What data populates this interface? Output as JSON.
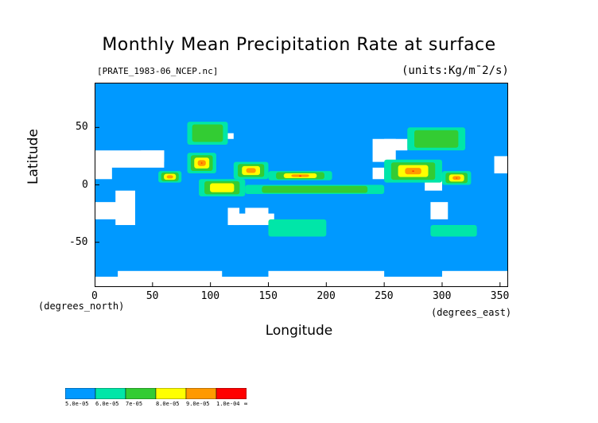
{
  "chart_data": {
    "type": "heatmap",
    "title": "Monthly Mean Precipitation Rate at surface",
    "source_file": "[PRATE_1983-06_NCEP.nc]",
    "units": "(units:Kg/m¯2/s)",
    "xlabel": "Longitude",
    "ylabel": "Latitude",
    "x_units_label": "(degrees_north)",
    "x_units_label_right": "(degrees_east)",
    "xlim": [
      0,
      357
    ],
    "ylim": [
      -89,
      89
    ],
    "x_ticks": [
      0,
      50,
      100,
      150,
      200,
      250,
      300,
      350
    ],
    "y_ticks": [
      50,
      0,
      -50
    ],
    "legend": {
      "labels": [
        "5.0e-05",
        "6.0e-05",
        "7e-05",
        "8.0e-05",
        "9.0e-05",
        "1.0e-04",
        "∞"
      ],
      "colors": [
        "#0099ff",
        "#00e6a8",
        "#33cc33",
        "#ffff00",
        "#ff9900",
        "#ff0000"
      ]
    },
    "missing_color": "#ffffff",
    "background_level_color": "#0099ff",
    "high_precip_regions": [
      {
        "lon": [
          80,
          105
        ],
        "lat": [
          10,
          28
        ],
        "level": 6
      },
      {
        "lon": [
          55,
          75
        ],
        "lat": [
          2,
          12
        ],
        "level": 5
      },
      {
        "lon": [
          120,
          150
        ],
        "lat": [
          5,
          20
        ],
        "level": 5
      },
      {
        "lon": [
          150,
          205
        ],
        "lat": [
          4,
          12
        ],
        "level": 6
      },
      {
        "lon": [
          250,
          300
        ],
        "lat": [
          2,
          22
        ],
        "level": 6
      },
      {
        "lon": [
          300,
          325
        ],
        "lat": [
          0,
          12
        ],
        "level": 6
      },
      {
        "lon": [
          90,
          130
        ],
        "lat": [
          -10,
          5
        ],
        "level": 4
      },
      {
        "lon": [
          130,
          250
        ],
        "lat": [
          -8,
          0
        ],
        "level": 3
      },
      {
        "lon": [
          80,
          115
        ],
        "lat": [
          35,
          55
        ],
        "level": 3
      },
      {
        "lon": [
          270,
          320
        ],
        "lat": [
          30,
          50
        ],
        "level": 3
      },
      {
        "lon": [
          150,
          200
        ],
        "lat": [
          -45,
          -30
        ],
        "level": 2
      },
      {
        "lon": [
          290,
          330
        ],
        "lat": [
          -45,
          -35
        ],
        "level": 2
      }
    ],
    "grid": false
  }
}
